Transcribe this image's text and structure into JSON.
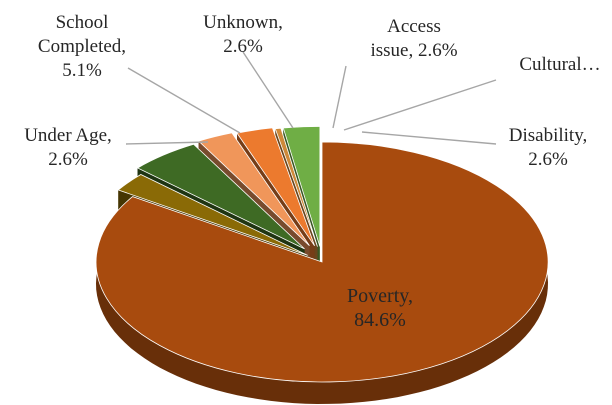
{
  "chart_data": {
    "type": "pie",
    "title": "",
    "style": "3d-exploded",
    "slices": [
      {
        "label": "Poverty",
        "value": 84.6,
        "display": "84.6%",
        "color": "#a84b0e",
        "label_lines": [
          "Poverty,",
          "84.6%"
        ]
      },
      {
        "label": "Under Age",
        "value": 2.6,
        "display": "2.6%",
        "color": "#8a6a06",
        "label_lines": [
          "Under Age,",
          "2.6%"
        ]
      },
      {
        "label": "School Completed",
        "value": 5.1,
        "display": "5.1%",
        "color": "#3e6a24",
        "label_lines": [
          "School",
          "Completed,",
          "5.1%"
        ]
      },
      {
        "label": "Unknown",
        "value": 2.6,
        "display": "2.6%",
        "color": "#f0965a",
        "label_lines": [
          "Unknown,",
          "2.6%"
        ]
      },
      {
        "label": "Access issue",
        "value": 2.6,
        "display": "2.6%",
        "color": "#ec7a2e",
        "label_lines": [
          "Access",
          "issue, 2.6%"
        ]
      },
      {
        "label": "Cultural…",
        "value": 0.4,
        "display": "",
        "color": "#cf8a3a",
        "label_lines": [
          "Cultural…"
        ]
      },
      {
        "label": "Disability",
        "value": 2.6,
        "display": "2.6%",
        "color": "#6fae45",
        "label_lines": [
          "Disability,",
          "2.6%"
        ]
      }
    ]
  }
}
